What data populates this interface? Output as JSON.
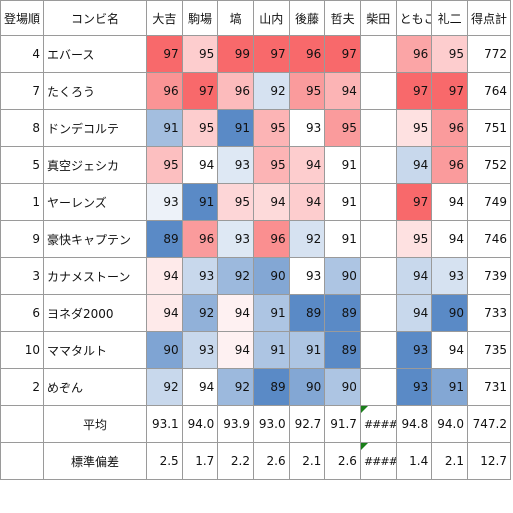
{
  "headers": [
    "登場順",
    "コンビ名",
    "大吉",
    "駒場",
    "塙",
    "山内",
    "後藤",
    "哲夫",
    "柴田",
    "ともこ",
    "礼二",
    "得点計"
  ],
  "rows": [
    {
      "order": "4",
      "name": "エバース",
      "scores": [
        "97",
        "95",
        "99",
        "97",
        "96",
        "97",
        "",
        "96",
        "95"
      ],
      "total": "772"
    },
    {
      "order": "7",
      "name": "たくろう",
      "scores": [
        "96",
        "97",
        "96",
        "92",
        "95",
        "94",
        "",
        "97",
        "97"
      ],
      "total": "764"
    },
    {
      "order": "8",
      "name": "ドンデコルテ",
      "scores": [
        "91",
        "95",
        "91",
        "95",
        "93",
        "95",
        "",
        "95",
        "96"
      ],
      "total": "751"
    },
    {
      "order": "5",
      "name": "真空ジェシカ",
      "scores": [
        "95",
        "94",
        "93",
        "95",
        "94",
        "91",
        "",
        "94",
        "96"
      ],
      "total": "752"
    },
    {
      "order": "1",
      "name": "ヤーレンズ",
      "scores": [
        "93",
        "91",
        "95",
        "94",
        "94",
        "91",
        "",
        "97",
        "94"
      ],
      "total": "749"
    },
    {
      "order": "9",
      "name": "豪快キャプテン",
      "scores": [
        "89",
        "96",
        "93",
        "96",
        "92",
        "91",
        "",
        "95",
        "94"
      ],
      "total": "746"
    },
    {
      "order": "3",
      "name": "カナメストーン",
      "scores": [
        "94",
        "93",
        "92",
        "90",
        "93",
        "90",
        "",
        "94",
        "93"
      ],
      "total": "739"
    },
    {
      "order": "6",
      "name": "ヨネダ2000",
      "scores": [
        "94",
        "92",
        "94",
        "91",
        "89",
        "89",
        "",
        "94",
        "90"
      ],
      "total": "733"
    },
    {
      "order": "10",
      "name": "ママタルト",
      "scores": [
        "90",
        "93",
        "94",
        "91",
        "91",
        "89",
        "",
        "93",
        "94"
      ],
      "total": "735"
    },
    {
      "order": "2",
      "name": "めぞん",
      "scores": [
        "92",
        "94",
        "92",
        "89",
        "90",
        "90",
        "",
        "93",
        "91"
      ],
      "total": "731"
    }
  ],
  "summary": [
    {
      "label": "平均",
      "values": [
        "93.1",
        "94.0",
        "93.9",
        "93.0",
        "92.7",
        "91.7",
        "#####",
        "94.8",
        "94.0",
        "747.2"
      ]
    },
    {
      "label": "標準偏差",
      "values": [
        "2.5",
        "1.7",
        "2.2",
        "2.6",
        "2.1",
        "2.6",
        "#####",
        "1.4",
        "2.1",
        "12.7"
      ]
    }
  ],
  "colors": {
    "high": "#f8696b",
    "mid": "#ffffff",
    "low": "#5a8ac6",
    "grid": "#9a9a9a",
    "error_marker": "#1a7f1a"
  }
}
